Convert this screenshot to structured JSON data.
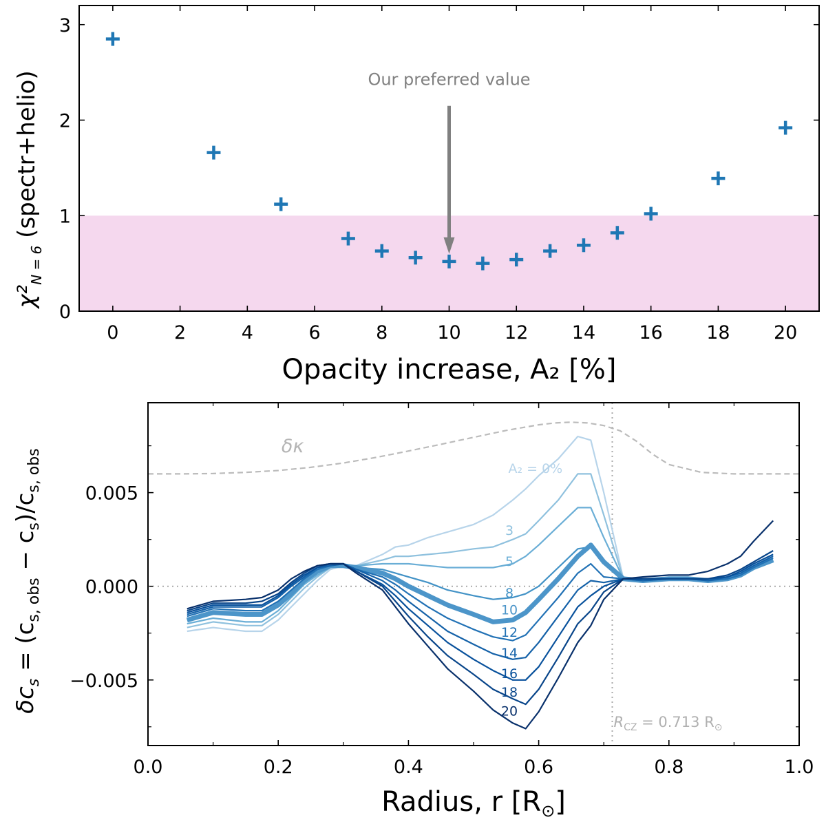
{
  "chart_data": [
    {
      "type": "scatter",
      "title": "",
      "xlabel": "Opacity increase, A₂ [%]",
      "ylabel": "χ²",
      "ylabel_subscript": "N = 6",
      "ylabel_suffix": " (spectr+helio)",
      "xlim": [
        -1,
        21
      ],
      "ylim": [
        0,
        3.2
      ],
      "xticks": [
        "0",
        "2",
        "4",
        "6",
        "8",
        "10",
        "12",
        "14",
        "16",
        "18",
        "20"
      ],
      "yticks": [
        "0",
        "1",
        "2",
        "3"
      ],
      "marker": "plus",
      "marker_color": "#1f77b4",
      "shaded_band": {
        "y0": 0,
        "y1": 1,
        "color": "#f5d8ee"
      },
      "x": [
        0,
        3,
        5,
        7,
        8,
        9,
        10,
        11,
        12,
        13,
        14,
        15,
        16,
        18,
        20
      ],
      "y": [
        2.85,
        1.66,
        1.12,
        0.76,
        0.63,
        0.56,
        0.52,
        0.5,
        0.54,
        0.63,
        0.69,
        0.82,
        1.02,
        1.39,
        1.92
      ],
      "annotation": {
        "text": "Our preferred value",
        "x": 10,
        "y_tail": 2.15,
        "y_head": 0.6,
        "color": "#808080"
      }
    },
    {
      "type": "line",
      "title": "",
      "xlabel": "Radius, r [R",
      "xlabel_suffix": "]",
      "ylabel": "δc",
      "ylabel_rest": " = (c",
      "ylabel_mid": " − c",
      "ylabel_end": ")/c",
      "sub_s": "s",
      "sub_sobs": "s, obs",
      "xlim": [
        0,
        1
      ],
      "ylim": [
        -0.0085,
        0.0098
      ],
      "xticks": [
        "0.0",
        "0.2",
        "0.4",
        "0.6",
        "0.8",
        "1.0"
      ],
      "yticks": [
        "−0.005",
        "0.000",
        "0.005"
      ],
      "zero_line": true,
      "rcz": {
        "x": 0.713,
        "label": "R",
        "label_sub": "CZ",
        "label_rest": " = 0.713 R"
      },
      "delta_kappa": {
        "label": "δκ",
        "color": "#bbbbbb",
        "x": [
          0.0,
          0.05,
          0.1,
          0.15,
          0.2,
          0.25,
          0.3,
          0.35,
          0.4,
          0.45,
          0.5,
          0.55,
          0.6,
          0.625,
          0.65,
          0.675,
          0.7,
          0.725,
          0.75,
          0.775,
          0.8,
          0.85,
          0.9,
          0.95,
          1.0
        ],
        "y": [
          0.006,
          0.006,
          0.00602,
          0.00608,
          0.00618,
          0.00635,
          0.00658,
          0.00688,
          0.00722,
          0.00758,
          0.00795,
          0.00832,
          0.00862,
          0.00872,
          0.00876,
          0.00872,
          0.00858,
          0.0083,
          0.00775,
          0.00705,
          0.0065,
          0.00608,
          0.006,
          0.006,
          0.006
        ]
      },
      "x": [
        0.06,
        0.1,
        0.15,
        0.175,
        0.2,
        0.22,
        0.24,
        0.26,
        0.28,
        0.3,
        0.32,
        0.36,
        0.38,
        0.4,
        0.43,
        0.46,
        0.5,
        0.53,
        0.56,
        0.58,
        0.6,
        0.63,
        0.66,
        0.68,
        0.7,
        0.73,
        0.76,
        0.8,
        0.83,
        0.86,
        0.89,
        0.91,
        0.93,
        0.96
      ],
      "series": [
        {
          "name": "A2 = 0%",
          "label": "A₂ = 0%",
          "color": "#b7d4ea",
          "width": 2.2,
          "values": [
            -0.0024,
            -0.0022,
            -0.0024,
            -0.0024,
            -0.0018,
            -0.0011,
            -0.0004,
            0.0003,
            0.0009,
            0.0011,
            0.0011,
            0.0017,
            0.0021,
            0.0022,
            0.0026,
            0.0029,
            0.0033,
            0.0038,
            0.0046,
            0.0052,
            0.0059,
            0.0068,
            0.008,
            0.0078,
            0.005,
            0.0004,
            0.0003,
            0.0004,
            0.0004,
            0.0003,
            0.0004,
            0.0006,
            0.001,
            0.0014
          ]
        },
        {
          "name": "A2 = 3%",
          "label": "3",
          "color": "#8fc1de",
          "width": 2.2,
          "values": [
            -0.0022,
            -0.0019,
            -0.0021,
            -0.0021,
            -0.0015,
            -0.0008,
            -0.0001,
            0.0005,
            0.001,
            0.0011,
            0.0011,
            0.0014,
            0.0016,
            0.0016,
            0.0017,
            0.0018,
            0.002,
            0.0021,
            0.0025,
            0.0028,
            0.0035,
            0.0046,
            0.006,
            0.006,
            0.0038,
            0.0004,
            0.0003,
            0.0004,
            0.0004,
            0.0003,
            0.0004,
            0.0006,
            0.001,
            0.0014
          ]
        },
        {
          "name": "A2 = 5%",
          "label": "5",
          "color": "#6aaed6",
          "width": 2.2,
          "values": [
            -0.002,
            -0.0017,
            -0.0019,
            -0.0019,
            -0.0013,
            -0.0006,
            0.0001,
            0.0006,
            0.001,
            0.0011,
            0.0011,
            0.0012,
            0.0012,
            0.0012,
            0.0011,
            0.001,
            0.001,
            0.001,
            0.0012,
            0.0016,
            0.0022,
            0.0032,
            0.0042,
            0.0042,
            0.0026,
            0.0004,
            0.0003,
            0.0004,
            0.0004,
            0.0003,
            0.0004,
            0.0006,
            0.001,
            0.0014
          ]
        },
        {
          "name": "A2 = 8%",
          "label": "8",
          "color": "#4292c6",
          "width": 2.2,
          "values": [
            -0.0018,
            -0.0014,
            -0.0015,
            -0.0015,
            -0.001,
            -0.0004,
            0.0003,
            0.0008,
            0.0011,
            0.0012,
            0.001,
            0.0009,
            0.0007,
            0.0005,
            0.0002,
            -0.0002,
            -0.0005,
            -0.0007,
            -0.0006,
            -0.0004,
            0.0,
            0.001,
            0.002,
            0.0021,
            0.0013,
            0.0004,
            0.0003,
            0.0004,
            0.0004,
            0.0003,
            0.0004,
            0.0006,
            0.001,
            0.0014
          ]
        },
        {
          "name": "A2 = 10%",
          "label": "10",
          "color": "#4c95c9",
          "width": 7,
          "values": [
            -0.0018,
            -0.0014,
            -0.0015,
            -0.0015,
            -0.001,
            -0.0004,
            0.0003,
            0.0008,
            0.0011,
            0.0011,
            0.001,
            0.0007,
            0.0004,
            0.0,
            -0.0005,
            -0.001,
            -0.0015,
            -0.0019,
            -0.0018,
            -0.0014,
            -0.0007,
            0.0004,
            0.0016,
            0.0022,
            0.0013,
            0.0004,
            0.0003,
            0.0004,
            0.0004,
            0.0003,
            0.0004,
            0.0006,
            0.001,
            0.0014
          ]
        },
        {
          "name": "A2 = 12%",
          "label": "12",
          "color": "#2171b5",
          "width": 2.2,
          "values": [
            -0.0016,
            -0.0012,
            -0.0013,
            -0.0013,
            -0.0008,
            -0.0002,
            0.0004,
            0.0009,
            0.0011,
            0.0012,
            0.0009,
            0.0005,
            0.0001,
            -0.0004,
            -0.0011,
            -0.0017,
            -0.0023,
            -0.0027,
            -0.0029,
            -0.0026,
            -0.0018,
            -0.0006,
            0.0007,
            0.0012,
            0.0005,
            0.0004,
            0.0003,
            0.0004,
            0.0004,
            0.0003,
            0.0004,
            0.0006,
            0.001,
            0.0015
          ]
        },
        {
          "name": "A2 = 14%",
          "label": "14",
          "color": "#1461a8",
          "width": 2.2,
          "values": [
            -0.0015,
            -0.0011,
            -0.0011,
            -0.0011,
            -0.0006,
            0.0,
            0.0005,
            0.001,
            0.0011,
            0.0012,
            0.0009,
            0.0003,
            -0.0002,
            -0.0008,
            -0.0016,
            -0.0024,
            -0.0031,
            -0.0036,
            -0.0039,
            -0.0038,
            -0.003,
            -0.0016,
            -0.0002,
            0.0003,
            0.0002,
            0.0004,
            0.0003,
            0.0004,
            0.0004,
            0.0003,
            0.0005,
            0.0007,
            0.0011,
            0.0016
          ]
        },
        {
          "name": "A2 = 16%",
          "label": "16",
          "color": "#08519c",
          "width": 2.2,
          "values": [
            -0.0014,
            -0.001,
            -0.001,
            -0.001,
            -0.0005,
            0.0001,
            0.0006,
            0.001,
            0.0012,
            0.0012,
            0.0008,
            0.0001,
            -0.0005,
            -0.0012,
            -0.0021,
            -0.003,
            -0.0039,
            -0.0045,
            -0.005,
            -0.005,
            -0.0043,
            -0.0027,
            -0.0011,
            -0.0005,
            0.0,
            0.0004,
            0.0004,
            0.0004,
            0.0004,
            0.0004,
            0.0005,
            0.0008,
            0.0012,
            0.0017
          ]
        },
        {
          "name": "A2 = 18%",
          "label": "18",
          "color": "#08458a",
          "width": 2.2,
          "values": [
            -0.0013,
            -0.0009,
            -0.0009,
            -0.0008,
            -0.0004,
            0.0002,
            0.0007,
            0.0011,
            0.0012,
            0.0012,
            0.0008,
            0.0,
            -0.0008,
            -0.0016,
            -0.0027,
            -0.0037,
            -0.0047,
            -0.0055,
            -0.006,
            -0.0063,
            -0.0055,
            -0.0038,
            -0.002,
            -0.0013,
            -0.0003,
            0.0004,
            0.0004,
            0.0004,
            0.0004,
            0.0004,
            0.0006,
            0.0009,
            0.0013,
            0.0019
          ]
        },
        {
          "name": "A2 = 20%",
          "label": "20",
          "color": "#08306b",
          "width": 2.2,
          "values": [
            -0.0012,
            -0.0008,
            -0.0007,
            -0.0006,
            -0.0002,
            0.0004,
            0.0008,
            0.0011,
            0.0012,
            0.0012,
            0.0007,
            -0.0002,
            -0.0011,
            -0.002,
            -0.0032,
            -0.0044,
            -0.0056,
            -0.0066,
            -0.0073,
            -0.0076,
            -0.0067,
            -0.0049,
            -0.003,
            -0.0021,
            -0.0007,
            0.0004,
            0.0005,
            0.0006,
            0.0006,
            0.0008,
            0.0012,
            0.0016,
            0.0024,
            0.0035
          ]
        }
      ]
    }
  ]
}
